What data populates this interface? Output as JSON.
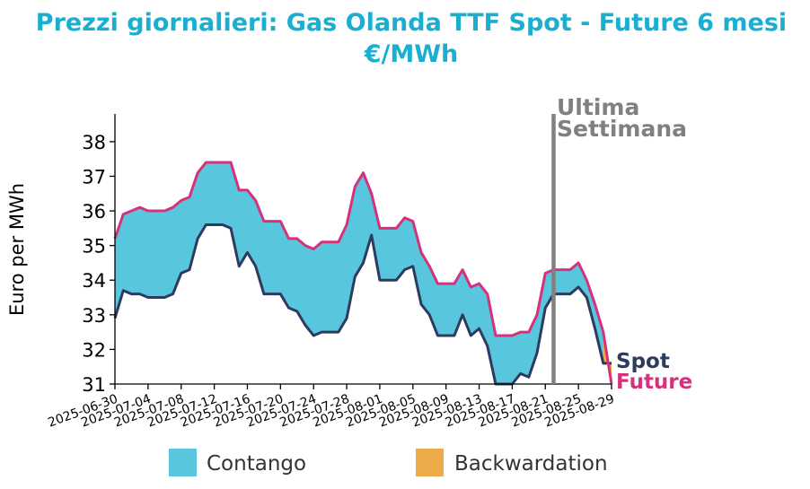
{
  "chart_data": {
    "type": "area",
    "title": "Prezzi giornalieri: Gas Olanda TTF Spot - Future 6 mesi",
    "subtitle": "€/MWh",
    "ylabel": "Euro per MWh",
    "xlabel": "",
    "ylim": [
      31,
      38.8
    ],
    "yticks": [
      31,
      32,
      33,
      34,
      35,
      36,
      37,
      38
    ],
    "xticks": [
      "2025-06-30",
      "2025-07-04",
      "2025-07-08",
      "2025-07-12",
      "2025-07-16",
      "2025-07-20",
      "2025-07-24",
      "2025-07-28",
      "2025-08-01",
      "2025-08-05",
      "2025-08-09",
      "2025-08-13",
      "2025-08-17",
      "2025-08-21",
      "2025-08-25",
      "2025-08-29"
    ],
    "x_start": "2025-06-30",
    "x_end": "2025-08-29",
    "grid": false,
    "annotation": {
      "line_1": "Ultima",
      "line_2": "Settimana",
      "date": "2025-08-22",
      "color": "#808080"
    },
    "legend": {
      "placement": "bottom",
      "items": [
        {
          "label": "Contango",
          "color": "#58c6dd"
        },
        {
          "label": "Backwardation",
          "color": "#eeab4a"
        }
      ]
    },
    "series": [
      {
        "name": "Spot",
        "color": "#2d3b5e",
        "points": [
          [
            "2025-06-30",
            32.9
          ],
          [
            "2025-07-01",
            33.7
          ],
          [
            "2025-07-02",
            33.6
          ],
          [
            "2025-07-03",
            33.6
          ],
          [
            "2025-07-04",
            33.5
          ],
          [
            "2025-07-05",
            33.5
          ],
          [
            "2025-07-06",
            33.5
          ],
          [
            "2025-07-07",
            33.6
          ],
          [
            "2025-07-08",
            34.2
          ],
          [
            "2025-07-09",
            34.3
          ],
          [
            "2025-07-10",
            35.2
          ],
          [
            "2025-07-11",
            35.6
          ],
          [
            "2025-07-12",
            35.6
          ],
          [
            "2025-07-13",
            35.6
          ],
          [
            "2025-07-14",
            35.5
          ],
          [
            "2025-07-15",
            34.4
          ],
          [
            "2025-07-16",
            34.8
          ],
          [
            "2025-07-17",
            34.4
          ],
          [
            "2025-07-18",
            33.6
          ],
          [
            "2025-07-19",
            33.6
          ],
          [
            "2025-07-20",
            33.6
          ],
          [
            "2025-07-21",
            33.2
          ],
          [
            "2025-07-22",
            33.1
          ],
          [
            "2025-07-23",
            32.7
          ],
          [
            "2025-07-24",
            32.4
          ],
          [
            "2025-07-25",
            32.5
          ],
          [
            "2025-07-26",
            32.5
          ],
          [
            "2025-07-27",
            32.5
          ],
          [
            "2025-07-28",
            32.9
          ],
          [
            "2025-07-29",
            34.1
          ],
          [
            "2025-07-30",
            34.5
          ],
          [
            "2025-07-31",
            35.3
          ],
          [
            "2025-08-01",
            34.0
          ],
          [
            "2025-08-02",
            34.0
          ],
          [
            "2025-08-03",
            34.0
          ],
          [
            "2025-08-04",
            34.3
          ],
          [
            "2025-08-05",
            34.4
          ],
          [
            "2025-08-06",
            33.3
          ],
          [
            "2025-08-07",
            33.0
          ],
          [
            "2025-08-08",
            32.4
          ],
          [
            "2025-08-09",
            32.4
          ],
          [
            "2025-08-10",
            32.4
          ],
          [
            "2025-08-11",
            33.0
          ],
          [
            "2025-08-12",
            32.4
          ],
          [
            "2025-08-13",
            32.6
          ],
          [
            "2025-08-14",
            32.1
          ],
          [
            "2025-08-15",
            31.0
          ],
          [
            "2025-08-16",
            31.0
          ],
          [
            "2025-08-17",
            31.0
          ],
          [
            "2025-08-18",
            31.3
          ],
          [
            "2025-08-19",
            31.2
          ],
          [
            "2025-08-20",
            31.9
          ],
          [
            "2025-08-21",
            33.2
          ],
          [
            "2025-08-22",
            33.6
          ],
          [
            "2025-08-23",
            33.6
          ],
          [
            "2025-08-24",
            33.6
          ],
          [
            "2025-08-25",
            33.8
          ],
          [
            "2025-08-26",
            33.5
          ],
          [
            "2025-08-27",
            32.6
          ],
          [
            "2025-08-28",
            31.6
          ],
          [
            "2025-08-29",
            31.6
          ]
        ]
      },
      {
        "name": "Future",
        "color": "#d6317c",
        "points": [
          [
            "2025-06-30",
            35.2
          ],
          [
            "2025-07-01",
            35.9
          ],
          [
            "2025-07-02",
            36.0
          ],
          [
            "2025-07-03",
            36.1
          ],
          [
            "2025-07-04",
            36.0
          ],
          [
            "2025-07-05",
            36.0
          ],
          [
            "2025-07-06",
            36.0
          ],
          [
            "2025-07-07",
            36.1
          ],
          [
            "2025-07-08",
            36.3
          ],
          [
            "2025-07-09",
            36.4
          ],
          [
            "2025-07-10",
            37.1
          ],
          [
            "2025-07-11",
            37.4
          ],
          [
            "2025-07-12",
            37.4
          ],
          [
            "2025-07-13",
            37.4
          ],
          [
            "2025-07-14",
            37.4
          ],
          [
            "2025-07-15",
            36.6
          ],
          [
            "2025-07-16",
            36.6
          ],
          [
            "2025-07-17",
            36.3
          ],
          [
            "2025-07-18",
            35.7
          ],
          [
            "2025-07-19",
            35.7
          ],
          [
            "2025-07-20",
            35.7
          ],
          [
            "2025-07-21",
            35.2
          ],
          [
            "2025-07-22",
            35.2
          ],
          [
            "2025-07-23",
            35.0
          ],
          [
            "2025-07-24",
            34.9
          ],
          [
            "2025-07-25",
            35.1
          ],
          [
            "2025-07-26",
            35.1
          ],
          [
            "2025-07-27",
            35.1
          ],
          [
            "2025-07-28",
            35.6
          ],
          [
            "2025-07-29",
            36.7
          ],
          [
            "2025-07-30",
            37.1
          ],
          [
            "2025-07-31",
            36.5
          ],
          [
            "2025-08-01",
            35.5
          ],
          [
            "2025-08-02",
            35.5
          ],
          [
            "2025-08-03",
            35.5
          ],
          [
            "2025-08-04",
            35.8
          ],
          [
            "2025-08-05",
            35.7
          ],
          [
            "2025-08-06",
            34.8
          ],
          [
            "2025-08-07",
            34.4
          ],
          [
            "2025-08-08",
            33.9
          ],
          [
            "2025-08-09",
            33.9
          ],
          [
            "2025-08-10",
            33.9
          ],
          [
            "2025-08-11",
            34.3
          ],
          [
            "2025-08-12",
            33.8
          ],
          [
            "2025-08-13",
            33.9
          ],
          [
            "2025-08-14",
            33.6
          ],
          [
            "2025-08-15",
            32.4
          ],
          [
            "2025-08-16",
            32.4
          ],
          [
            "2025-08-17",
            32.4
          ],
          [
            "2025-08-18",
            32.5
          ],
          [
            "2025-08-19",
            32.5
          ],
          [
            "2025-08-20",
            33.0
          ],
          [
            "2025-08-21",
            34.2
          ],
          [
            "2025-08-22",
            34.3
          ],
          [
            "2025-08-23",
            34.3
          ],
          [
            "2025-08-24",
            34.3
          ],
          [
            "2025-08-25",
            34.5
          ],
          [
            "2025-08-26",
            34.0
          ],
          [
            "2025-08-27",
            33.3
          ],
          [
            "2025-08-28",
            32.5
          ],
          [
            "2025-08-29",
            31.0
          ]
        ]
      }
    ]
  }
}
